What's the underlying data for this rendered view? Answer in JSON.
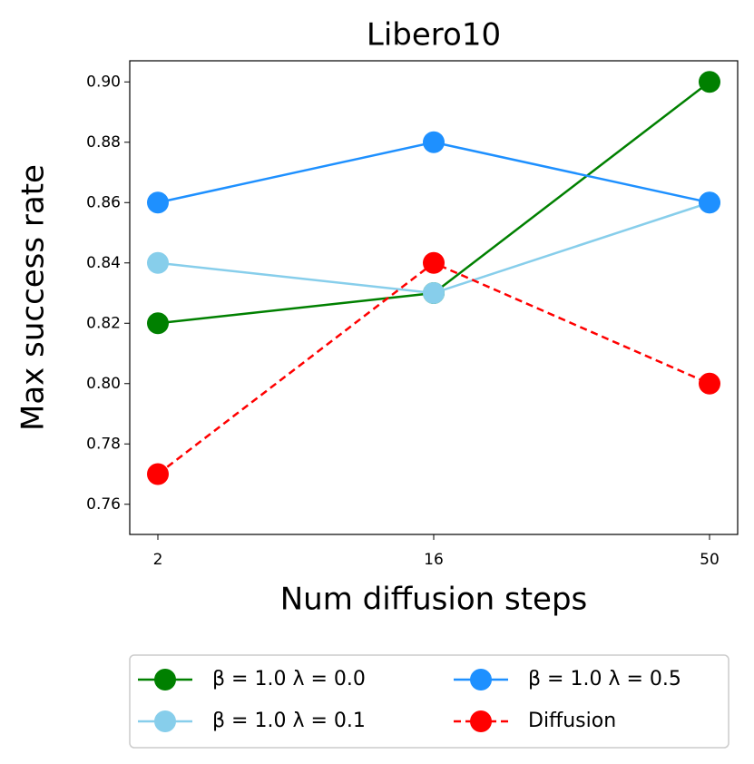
{
  "chart_data": {
    "type": "line",
    "title": "Libero10",
    "xlabel": "Num diffusion steps",
    "ylabel": "Max success rate",
    "categories": [
      "2",
      "16",
      "50"
    ],
    "series": [
      {
        "name": "β = 1.0 λ = 0.0",
        "color": "#008000",
        "linestyle": "solid",
        "values": [
          0.82,
          0.83,
          0.9
        ]
      },
      {
        "name": "β = 1.0 λ = 0.1",
        "color": "#87ceeb",
        "linestyle": "solid",
        "values": [
          0.84,
          0.83,
          0.86
        ]
      },
      {
        "name": "β = 1.0 λ = 0.5",
        "color": "#1e90ff",
        "linestyle": "solid",
        "values": [
          0.86,
          0.88,
          0.86
        ]
      },
      {
        "name": "Diffusion",
        "color": "#ff0000",
        "linestyle": "dashed",
        "values": [
          0.77,
          0.84,
          0.8
        ]
      }
    ],
    "ylim": [
      0.75,
      0.907
    ],
    "yticks": [
      0.76,
      0.78,
      {
        "value": 0.8,
        "label": "0.80"
      },
      0.82,
      0.84,
      0.86,
      0.88,
      {
        "value": 0.9,
        "label": "0.90"
      }
    ],
    "grid": false,
    "legend": "below"
  }
}
